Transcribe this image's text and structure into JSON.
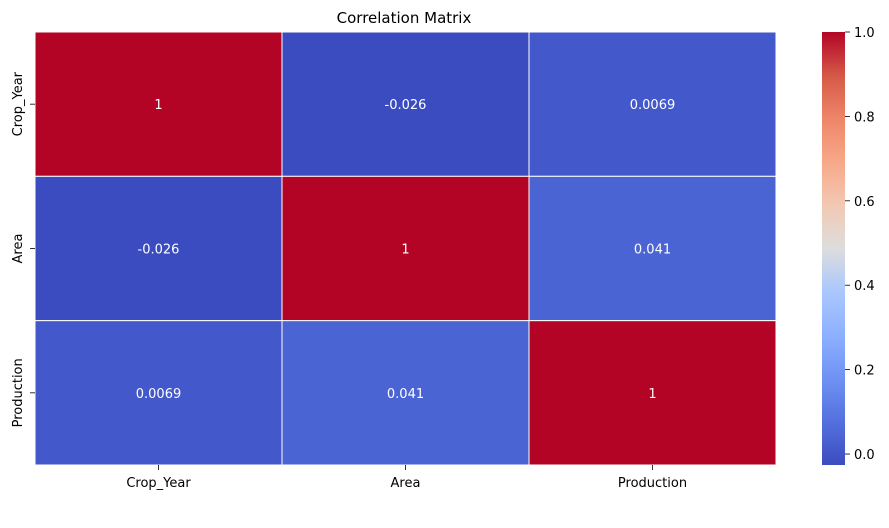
{
  "chart_data": {
    "type": "heatmap",
    "title": "Correlation Matrix",
    "xlabels": [
      "Crop_Year",
      "Area",
      "Production"
    ],
    "ylabels": [
      "Crop_Year",
      "Area",
      "Production"
    ],
    "values": [
      [
        1,
        -0.026,
        0.0069
      ],
      [
        -0.026,
        1,
        0.041
      ],
      [
        0.0069,
        0.041,
        1
      ]
    ],
    "cell_labels": [
      [
        "1",
        "-0.026",
        "0.0069"
      ],
      [
        "-0.026",
        "1",
        "0.041"
      ],
      [
        "0.0069",
        "0.041",
        "1"
      ]
    ],
    "colormap": "coolwarm",
    "vmin": -0.026,
    "vmax": 1,
    "colorbar_ticks": [
      "0.0",
      "0.2",
      "0.4",
      "0.6",
      "0.8",
      "1.0"
    ],
    "colorbar_tick_values": [
      0.0,
      0.2,
      0.4,
      0.6,
      0.8,
      1.0
    ],
    "cell_border_color": "#ffffff",
    "annotation_color": "#ffffff"
  }
}
